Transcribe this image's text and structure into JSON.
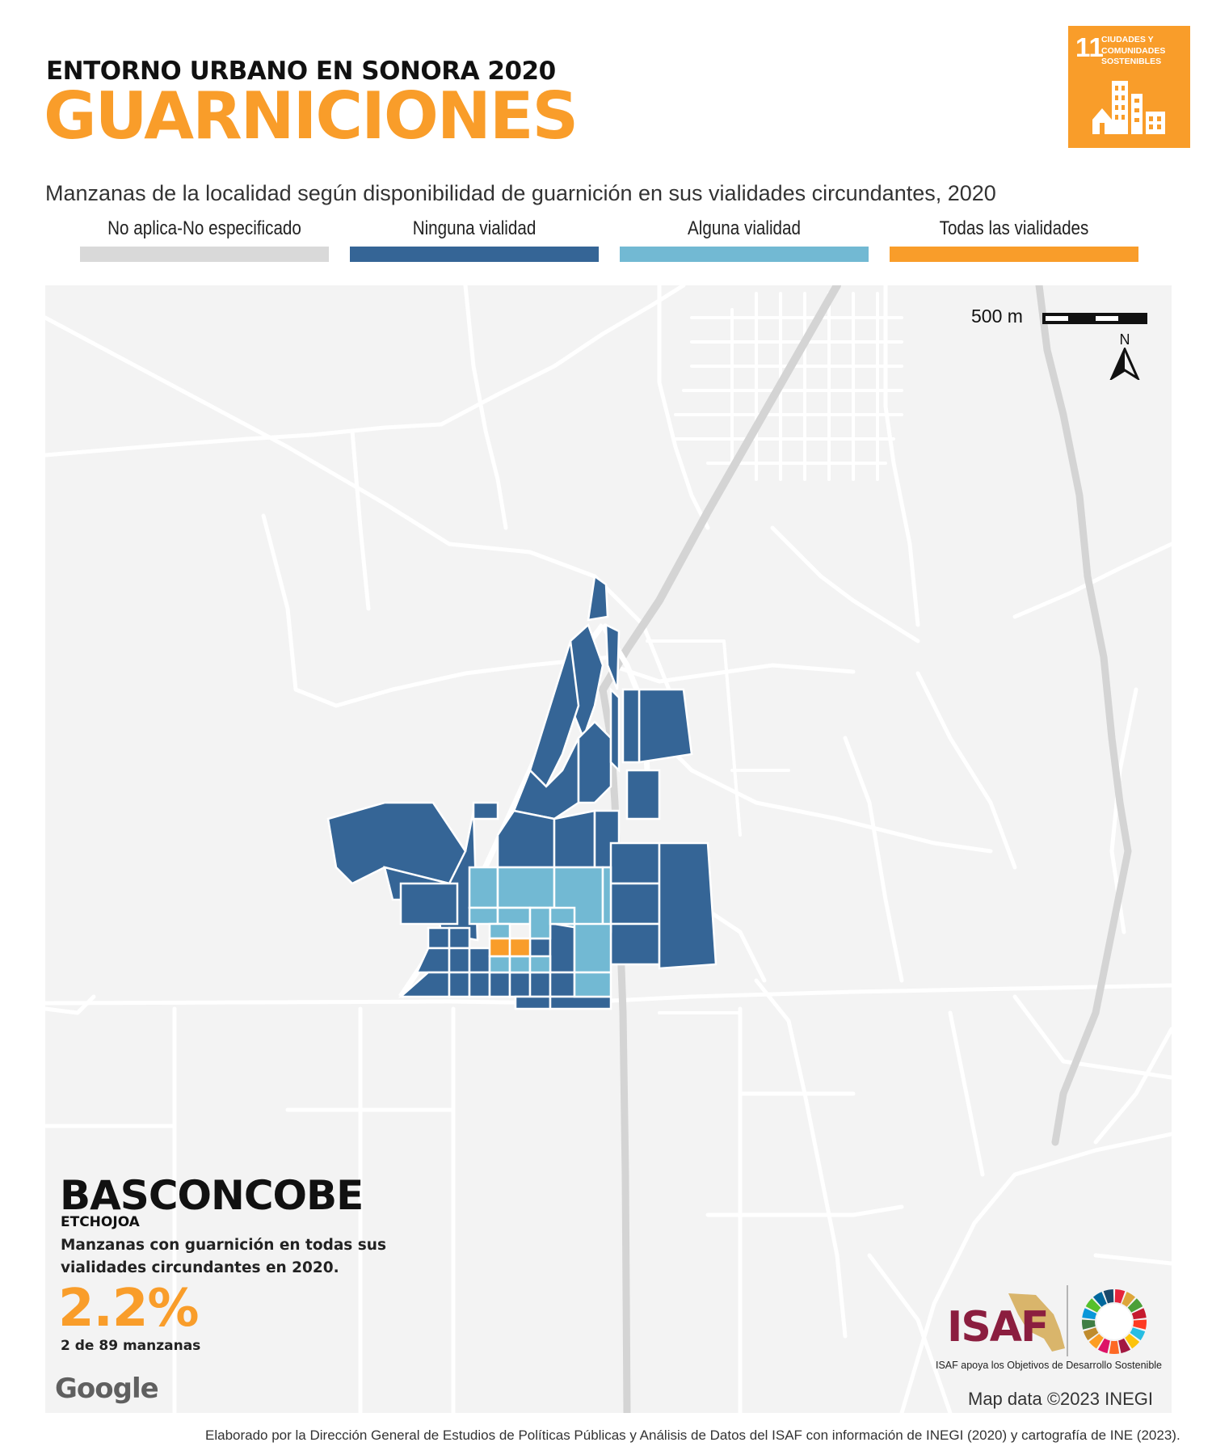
{
  "header": {
    "kicker": "ENTORNO URBANO EN SONORA 2020",
    "title": "GUARNICIONES",
    "subtitle": "Manzanas de la localidad según disponibilidad de guarnición en sus vialidades circundantes, 2020"
  },
  "sdg_badge": {
    "number": "11",
    "label": "CIUDADES Y COMUNIDADES SOSTENIBLES",
    "color": "#F99D2A"
  },
  "legend": [
    {
      "label": "No aplica-No especificado",
      "color": "#D9D9D9"
    },
    {
      "label": "Ninguna vialidad",
      "color": "#356596"
    },
    {
      "label": "Alguna vialidad",
      "color": "#72B9D3"
    },
    {
      "label": "Todas las vialidades",
      "color": "#F99D2A"
    }
  ],
  "map": {
    "scale_label": "500 m",
    "north_label": "N",
    "attribution": "Map data ©2023 INEGI",
    "provider": "Google"
  },
  "place": {
    "name": "BASCONCOBE",
    "municipality": "ETCHOJOA",
    "description": "Manzanas con guarnición en todas sus vialidades circundantes en 2020.",
    "percentage": "2.2%",
    "count": "2 de 89 manzanas"
  },
  "footer": {
    "org": "ISAF",
    "org_caption": "ISAF apoya los Objetivos de Desarrollo Sostenible",
    "credit": "Elaborado por la Dirección General de Estudios de Políticas Públicas y Análisis de Datos del ISAF con información de INEGI (2020) y cartografía de INE (2023)."
  }
}
